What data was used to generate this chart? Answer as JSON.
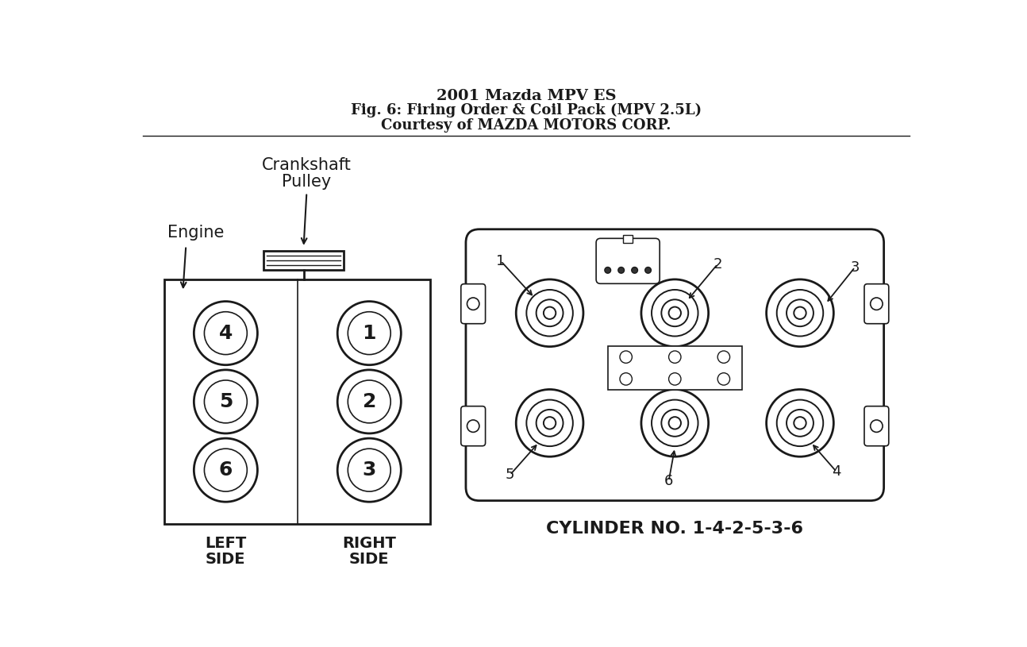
{
  "title_line1": "2001 Mazda MPV ES",
  "title_line2": "Fig. 6: Firing Order & Coil Pack (MPV 2.5L)",
  "title_line3": "Courtesy of MAZDA MOTORS CORP.",
  "bg_color": "#ffffff",
  "line_color": "#1a1a1a",
  "title_fontsize": 14,
  "subtitle_fontsize": 13,
  "diagram_fontsize": 15,
  "label_fontsize": 14,
  "cyl_num_fontsize": 18,
  "coil_label_fontsize": 13
}
